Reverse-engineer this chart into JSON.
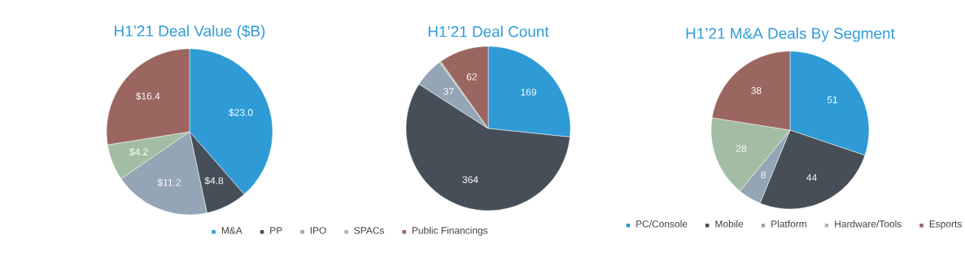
{
  "chart_data": [
    {
      "type": "pie",
      "title": "H1’21 Deal Value ($B)",
      "categories": [
        "M&A",
        "PP",
        "IPO",
        "SPACs",
        "Public Financings"
      ],
      "values": [
        23.0,
        4.8,
        11.2,
        4.2,
        16.4
      ],
      "value_labels": [
        "$23.0",
        "$4.8",
        "$11.2",
        "$4.2",
        "$16.4"
      ],
      "colors": [
        "#2e9bd6",
        "#464f58",
        "#94a5b5",
        "#a3bda5",
        "#9b6660"
      ],
      "legend": "bottom"
    },
    {
      "type": "pie",
      "title": "H1’21 Deal Count",
      "categories": [
        null,
        null,
        null,
        null,
        null
      ],
      "values": [
        169,
        364,
        37,
        2,
        62
      ],
      "value_labels": [
        "169",
        "364",
        "37",
        null,
        "62"
      ],
      "colors": [
        "#2e9bd6",
        "#464f58",
        "#94a5b5",
        "#a3bda5",
        "#9b6660"
      ]
    },
    {
      "type": "pie",
      "title": "H1’21 M&A Deals By Segment",
      "categories": [
        "PC/Console",
        "Mobile",
        "Platform",
        "Hardware/Tools",
        "Esports"
      ],
      "values": [
        51,
        44,
        8,
        28,
        38
      ],
      "data_labels": true,
      "colors": [
        "#2e9bd6",
        "#464f58",
        "#94a5b5",
        "#a3bda5",
        "#9b6660"
      ],
      "legend": "bottom"
    }
  ]
}
